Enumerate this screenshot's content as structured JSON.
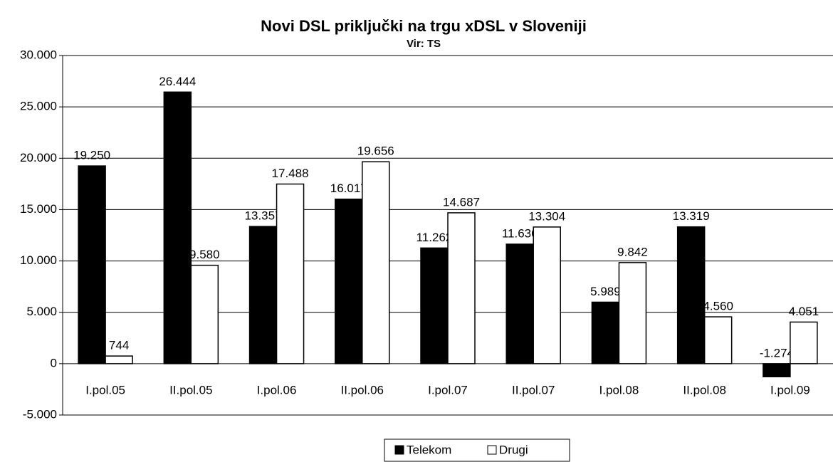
{
  "chart_data": {
    "type": "bar",
    "title": "Novi DSL priključki na trgu xDSL v Sloveniji",
    "subtitle": "Vir: TS",
    "categories": [
      "I.pol.05",
      "II.pol.05",
      "I.pol.06",
      "II.pol.06",
      "I.pol.07",
      "II.pol.07",
      "I.pol.08",
      "II.pol.08",
      "I.pol.09"
    ],
    "series": [
      {
        "name": "Telekom",
        "color": "#000000",
        "values": [
          19250,
          26444,
          13357,
          16017,
          11262,
          11636,
          5989,
          13319,
          -1274
        ],
        "value_labels": [
          "19.250",
          "26.444",
          "13.357",
          "16.017",
          "11.262",
          "11.636",
          "5.989",
          "13.319",
          "-1.274"
        ]
      },
      {
        "name": "Drugi",
        "color": "#ffffff",
        "values": [
          744,
          9580,
          17488,
          19656,
          14687,
          13304,
          9842,
          4560,
          4051
        ],
        "value_labels": [
          "744",
          "9.580",
          "17.488",
          "19.656",
          "14.687",
          "13.304",
          "9.842",
          "4.560",
          "4.051"
        ]
      }
    ],
    "ylim": [
      -5000,
      30000
    ],
    "yticks": [
      {
        "value": -5000,
        "label": "-5.000"
      },
      0,
      {
        "value": 5000,
        "label": "5.000"
      },
      {
        "value": 10000,
        "label": "10.000"
      },
      {
        "value": 15000,
        "label": "15.000"
      },
      {
        "value": 20000,
        "label": "20.000"
      },
      {
        "value": 25000,
        "label": "25.000"
      },
      {
        "value": 30000,
        "label": "30.000"
      }
    ],
    "grid": true,
    "legend": "bottom"
  }
}
